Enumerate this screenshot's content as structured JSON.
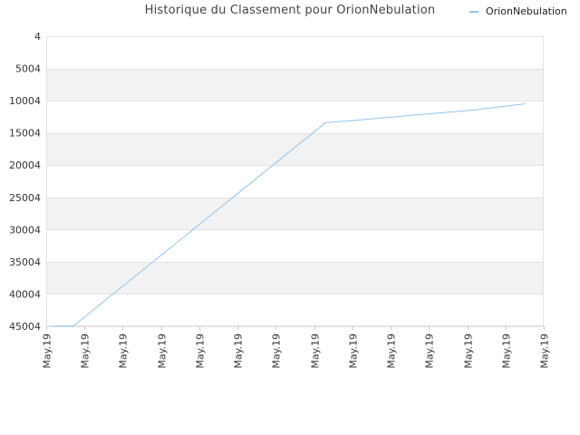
{
  "chart_data": {
    "type": "line",
    "title": "Historique du Classement pour OrionNebulation",
    "xlabel": "",
    "ylabel": "",
    "y_inverted": true,
    "ylim": [
      4,
      45004
    ],
    "y_ticks": [
      "4",
      "5004",
      "10004",
      "15004",
      "20004",
      "25004",
      "30004",
      "35004",
      "40004",
      "45004"
    ],
    "x_tick_labels": [
      "May.19",
      "May.19",
      "May.19",
      "May.19",
      "May.19",
      "May.19",
      "May.19",
      "May.19",
      "May.19",
      "May.19",
      "May.19",
      "May.19",
      "May.19",
      "May.19"
    ],
    "grid": true,
    "legend_position": "top-right",
    "colors": {
      "series": "#90c4f0",
      "band": "#f2f2f2",
      "grid": "#e3e3e3"
    },
    "series": [
      {
        "name": "OrionNebulation",
        "x": [
          0.2,
          0.7,
          7.3,
          8.0,
          9.5,
          11.1,
          12.5
        ],
        "values": [
          45000,
          45000,
          13400,
          13100,
          12300,
          11500,
          10500
        ]
      }
    ]
  }
}
